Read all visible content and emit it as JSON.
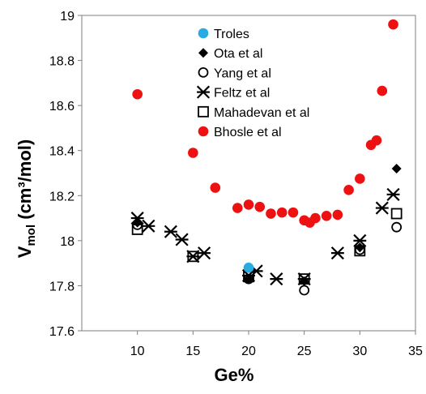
{
  "chart_data": {
    "type": "scatter",
    "title": "",
    "xlabel": "Ge%",
    "ylabel_main": "V",
    "ylabel_sub": "mol",
    "ylabel_rest": " (cm³/mol)",
    "xlim": [
      5,
      35
    ],
    "ylim": [
      17.6,
      19.0
    ],
    "x_ticks": [
      10,
      15,
      20,
      25,
      30,
      35
    ],
    "y_ticks": [
      17.6,
      17.8,
      18,
      18.2,
      18.4,
      18.6,
      18.8,
      19
    ],
    "x_tick_labels": [
      "10",
      "15",
      "20",
      "25",
      "30",
      "35"
    ],
    "y_tick_labels": [
      "17.6",
      "17.8",
      "18",
      "18.2",
      "18.4",
      "18.6",
      "18.8",
      "19"
    ],
    "grid": false,
    "legend_position": "top-center",
    "series": [
      {
        "name": "Troles",
        "marker": "filled-circle",
        "color": "#29abe2",
        "points": [
          [
            20,
            17.88
          ]
        ]
      },
      {
        "name": "Ota et al",
        "marker": "filled-diamond",
        "color": "#000000",
        "points": [
          [
            10,
            18.08
          ],
          [
            20,
            17.83
          ],
          [
            25,
            17.82
          ],
          [
            30,
            17.97
          ],
          [
            33.3,
            18.32
          ]
        ]
      },
      {
        "name": "Yang et al",
        "marker": "open-circle",
        "color": "#000000",
        "points": [
          [
            10,
            18.07
          ],
          [
            20,
            17.83
          ],
          [
            25,
            17.78
          ],
          [
            30,
            17.96
          ],
          [
            33.3,
            18.06
          ]
        ]
      },
      {
        "name": "Feltz et al",
        "marker": "asterisk",
        "color": "#000000",
        "points": [
          [
            10,
            18.1
          ],
          [
            11,
            18.065
          ],
          [
            13,
            18.04
          ],
          [
            14,
            18.005
          ],
          [
            15,
            17.93
          ],
          [
            16,
            17.945
          ],
          [
            20,
            17.845
          ],
          [
            20.7,
            17.865
          ],
          [
            22.5,
            17.83
          ],
          [
            25,
            17.83
          ],
          [
            28,
            17.945
          ],
          [
            30,
            18.0
          ],
          [
            32,
            18.145
          ],
          [
            33,
            18.205
          ]
        ]
      },
      {
        "name": "Mahadevan et al",
        "marker": "open-square",
        "color": "#000000",
        "points": [
          [
            10,
            18.05
          ],
          [
            15,
            17.93
          ],
          [
            20,
            17.84
          ],
          [
            25,
            17.83
          ],
          [
            30,
            17.955
          ],
          [
            33.3,
            18.12
          ]
        ]
      },
      {
        "name": "Bhosle et al",
        "marker": "filled-circle",
        "color": "#ee1111",
        "points": [
          [
            10,
            18.65
          ],
          [
            15,
            18.39
          ],
          [
            17,
            18.235
          ],
          [
            19,
            18.145
          ],
          [
            20,
            18.16
          ],
          [
            21,
            18.15
          ],
          [
            22,
            18.12
          ],
          [
            23,
            18.125
          ],
          [
            24,
            18.125
          ],
          [
            25,
            18.09
          ],
          [
            25.5,
            18.08
          ],
          [
            26,
            18.1
          ],
          [
            27,
            18.11
          ],
          [
            28,
            18.115
          ],
          [
            29,
            18.225
          ],
          [
            30,
            18.275
          ],
          [
            31,
            18.425
          ],
          [
            31.5,
            18.445
          ],
          [
            32,
            18.665
          ],
          [
            33,
            18.96
          ]
        ]
      }
    ]
  }
}
